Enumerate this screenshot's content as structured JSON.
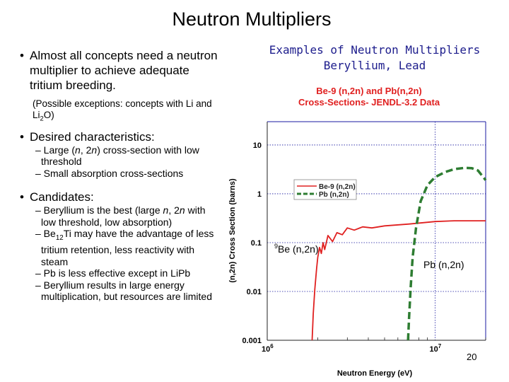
{
  "slide": {
    "title": "Neutron Multipliers",
    "page_number": "20"
  },
  "left": {
    "bullet1": "Almost all concepts need a neutron multiplier to achieve adequate tritium breeding.",
    "note": {
      "pre": "(Possible exceptions: concepts with Li and Li",
      "sub": "2",
      "post": "O)"
    },
    "bullet2": "Desired characteristics:",
    "desired": [
      {
        "pre": "– Large (",
        "em1": "n",
        "mid": ", 2",
        "em2": "n",
        "post": ") cross-section with low threshold"
      },
      {
        "text": "– Small absorption cross-sections"
      }
    ],
    "bullet3": "Candidates:",
    "cand1": {
      "pre": "– Beryllium is the best (large ",
      "em1": "n",
      "mid": ", 2",
      "em2": "n",
      "post": " with low threshold, low absorption)"
    },
    "cand2": {
      "pre": "– Be",
      "sub": "12",
      "post": "Ti may have the advantage of less tritium retention, less reactivity with steam"
    },
    "cand3": "– Pb is less effective except in LiPb",
    "cand4": "– Beryllium results in large energy multiplication, but resources are limited"
  },
  "examples": {
    "line1": "Examples of Neutron Multipliers",
    "line2": "Beryllium, Lead"
  },
  "chart_data": {
    "type": "line",
    "title": [
      "Be-9 (n,2n) and Pb(n,2n)",
      "Cross-Sections- JENDL-3.2 Data"
    ],
    "xlabel": "Neutron Energy (eV)",
    "ylabel": "(n,2n) Cross Section (barns)",
    "xscale": "log",
    "yscale": "log",
    "xlim": [
      1000000,
      20000000
    ],
    "ylim": [
      0.001,
      30
    ],
    "x_ticks": [
      {
        "base": "10",
        "exp": "6",
        "value": 1000000
      },
      {
        "base": "10",
        "exp": "7",
        "value": 10000000
      }
    ],
    "y_ticks": [
      {
        "label": "10",
        "value": 10
      },
      {
        "label": "1",
        "value": 1
      },
      {
        "label": "0.1",
        "value": 0.1
      },
      {
        "label": "0.01",
        "value": 0.01
      },
      {
        "label": "0.001",
        "value": 0.001
      }
    ],
    "grid": true,
    "legend_position": "center",
    "series": [
      {
        "name": "Be-9 (n,2n)",
        "color": "#e02020",
        "dash": "solid",
        "points": [
          [
            1850000,
            0.001
          ],
          [
            1880000,
            0.0035
          ],
          [
            1920000,
            0.011
          ],
          [
            1970000,
            0.03
          ],
          [
            2000000,
            0.05
          ],
          [
            2050000,
            0.08
          ],
          [
            2100000,
            0.06
          ],
          [
            2150000,
            0.1
          ],
          [
            2200000,
            0.072
          ],
          [
            2300000,
            0.14
          ],
          [
            2450000,
            0.105
          ],
          [
            2600000,
            0.16
          ],
          [
            2800000,
            0.145
          ],
          [
            3000000,
            0.2
          ],
          [
            3300000,
            0.18
          ],
          [
            3700000,
            0.21
          ],
          [
            4200000,
            0.2
          ],
          [
            5000000,
            0.22
          ],
          [
            7000000,
            0.24
          ],
          [
            10000000,
            0.27
          ],
          [
            13000000,
            0.28
          ],
          [
            17000000,
            0.28
          ],
          [
            20000000,
            0.28
          ]
        ]
      },
      {
        "name": "Pb (n,2n)",
        "color": "#2e7d32",
        "dash": "dashed",
        "points": [
          [
            6900000,
            0.001
          ],
          [
            7000000,
            0.003
          ],
          [
            7150000,
            0.012
          ],
          [
            7350000,
            0.05
          ],
          [
            7700000,
            0.2
          ],
          [
            8200000,
            0.7
          ],
          [
            9000000,
            1.5
          ],
          [
            10000000,
            2.2
          ],
          [
            11500000,
            2.8
          ],
          [
            13000000,
            3.2
          ],
          [
            15000000,
            3.4
          ],
          [
            16500000,
            3.35
          ],
          [
            18000000,
            3.0
          ],
          [
            20000000,
            1.9
          ]
        ]
      }
    ],
    "annotations": [
      {
        "pre": "",
        "sup": "9",
        "text": "Be (n,2n)"
      },
      {
        "text": "Pb (n,2n)"
      }
    ]
  }
}
